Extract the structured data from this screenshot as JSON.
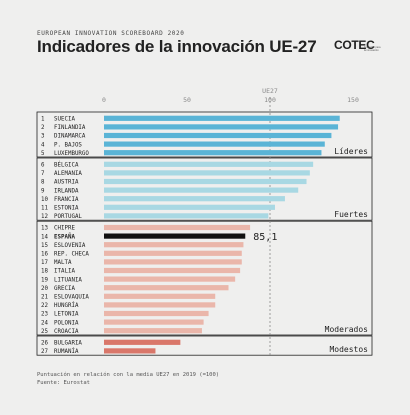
{
  "header": {
    "supertitle": "EUROPEAN INNOVATION SCOREBOARD 2020",
    "title": "Indicadores de la innovación UE-27",
    "logo_text": "COTEC",
    "logo_subtext": "fundación para la innovación"
  },
  "chart_data": {
    "type": "bar",
    "orientation": "horizontal",
    "xlim": [
      0,
      150
    ],
    "x_ticks": [
      0,
      50,
      100,
      150
    ],
    "reference": {
      "label": "UE27",
      "value": 100
    },
    "highlight": {
      "category": "ESPAÑA",
      "label": "85,1"
    },
    "groups": [
      {
        "name": "Líderes",
        "color": "#5ab4d6",
        "rows": [
          {
            "rank": "1",
            "country": "SUECIA",
            "value": 142
          },
          {
            "rank": "2",
            "country": "FINLANDIA",
            "value": 141
          },
          {
            "rank": "3",
            "country": "DINAMARCA",
            "value": 137
          },
          {
            "rank": "4",
            "country": "P. BAJOS",
            "value": 133
          },
          {
            "rank": "5",
            "country": "LUXEMBURGO",
            "value": 131
          }
        ]
      },
      {
        "name": "Fuertes",
        "color": "#a8d8e3",
        "rows": [
          {
            "rank": "6",
            "country": "BÉLGICA",
            "value": 126
          },
          {
            "rank": "7",
            "country": "ALEMANIA",
            "value": 124
          },
          {
            "rank": "8",
            "country": "AUSTRIA",
            "value": 122
          },
          {
            "rank": "9",
            "country": "IRLANDA",
            "value": 117
          },
          {
            "rank": "10",
            "country": "FRANCIA",
            "value": 109
          },
          {
            "rank": "11",
            "country": "ESTONIA",
            "value": 103
          },
          {
            "rank": "12",
            "country": "PORTUGAL",
            "value": 99
          }
        ]
      },
      {
        "name": "Moderados",
        "color": "#eab6aa",
        "rows": [
          {
            "rank": "13",
            "country": "CHIPRE",
            "value": 88
          },
          {
            "rank": "14",
            "country": "ESPAÑA",
            "value": 85.1
          },
          {
            "rank": "15",
            "country": "ESLOVENIA",
            "value": 84
          },
          {
            "rank": "16",
            "country": "REP. CHECA",
            "value": 83
          },
          {
            "rank": "17",
            "country": "MALTA",
            "value": 83
          },
          {
            "rank": "18",
            "country": "ITALIA",
            "value": 82
          },
          {
            "rank": "19",
            "country": "LITUANIA",
            "value": 79
          },
          {
            "rank": "20",
            "country": "GRECIA",
            "value": 75
          },
          {
            "rank": "21",
            "country": "ESLOVAQUIA",
            "value": 67
          },
          {
            "rank": "22",
            "country": "HUNGRÍA",
            "value": 67
          },
          {
            "rank": "23",
            "country": "LETONIA",
            "value": 63
          },
          {
            "rank": "24",
            "country": "POLONIA",
            "value": 60
          },
          {
            "rank": "25",
            "country": "CROACIA",
            "value": 59
          }
        ]
      },
      {
        "name": "Modestos",
        "color": "#d9776a",
        "rows": [
          {
            "rank": "26",
            "country": "BULGARIA",
            "value": 46
          },
          {
            "rank": "27",
            "country": "RUMANÍA",
            "value": 31
          }
        ]
      }
    ]
  },
  "footer": {
    "note": "Puntuación en relación con la media UE27 en 2019 (=100)",
    "source": "Fuente: Eurostat"
  }
}
